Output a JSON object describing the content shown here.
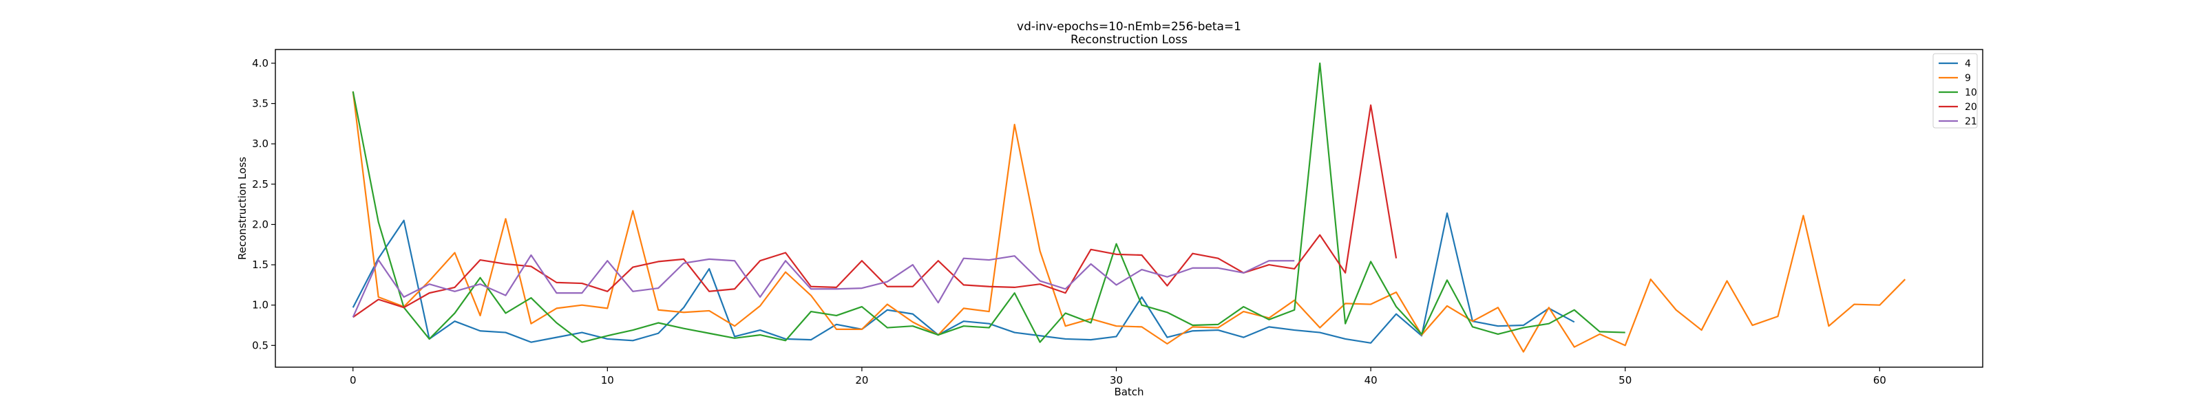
{
  "chart_data": {
    "type": "line",
    "title": "vd-inv-epochs=10-nEmb=256-beta=1",
    "subtitle": "Reconstruction Loss",
    "xlabel": "Batch",
    "ylabel": "Reconstruction Loss",
    "xlim": [
      -3.05,
      64.05
    ],
    "ylim": [
      0.23,
      4.17
    ],
    "xticks": [
      0,
      10,
      20,
      30,
      40,
      50,
      60
    ],
    "yticks": [
      0.5,
      1.0,
      1.5,
      2.0,
      2.5,
      3.0,
      3.5,
      4.0
    ],
    "grid": false,
    "legend_position": "top-right",
    "series": [
      {
        "name": "4",
        "color": "#1f77b4",
        "values": [
          0.97,
          1.58,
          2.05,
          0.58,
          0.8,
          0.68,
          0.66,
          0.54,
          0.6,
          0.66,
          0.58,
          0.56,
          0.65,
          0.97,
          1.45,
          0.61,
          0.69,
          0.58,
          0.57,
          0.76,
          0.7,
          0.94,
          0.89,
          0.63,
          0.8,
          0.77,
          0.66,
          0.62,
          0.58,
          0.57,
          0.61,
          1.1,
          0.6,
          0.68,
          0.69,
          0.6,
          0.73,
          0.69,
          0.66,
          0.58,
          0.53,
          0.89,
          0.62,
          2.14,
          0.8,
          0.74,
          0.75,
          0.96,
          0.79
        ]
      },
      {
        "name": "9",
        "color": "#ff7f0e",
        "values": [
          3.65,
          1.1,
          0.98,
          1.3,
          1.65,
          0.87,
          2.07,
          0.77,
          0.96,
          1.0,
          0.96,
          2.17,
          0.94,
          0.91,
          0.93,
          0.74,
          0.99,
          1.41,
          1.12,
          0.7,
          0.7,
          1.01,
          0.79,
          0.63,
          0.96,
          0.92,
          3.24,
          1.67,
          0.74,
          0.83,
          0.74,
          0.73,
          0.52,
          0.73,
          0.72,
          0.92,
          0.84,
          1.06,
          0.72,
          1.02,
          1.01,
          1.16,
          0.63,
          0.99,
          0.8,
          0.97,
          0.42,
          0.97,
          0.48,
          0.64,
          0.5,
          1.32,
          0.94,
          0.69,
          1.3,
          0.75,
          0.86,
          2.11,
          0.74,
          1.01,
          1.0,
          1.32
        ]
      },
      {
        "name": "10",
        "color": "#2ca02c",
        "values": [
          3.65,
          2.03,
          0.97,
          0.58,
          0.9,
          1.34,
          0.9,
          1.09,
          0.78,
          0.54,
          0.62,
          0.69,
          0.78,
          0.71,
          0.65,
          0.59,
          0.63,
          0.56,
          0.92,
          0.87,
          0.98,
          0.72,
          0.74,
          0.63,
          0.74,
          0.72,
          1.15,
          0.54,
          0.9,
          0.78,
          1.76,
          1.0,
          0.91,
          0.75,
          0.76,
          0.98,
          0.82,
          0.94,
          4.0,
          0.77,
          1.54,
          0.98,
          0.64,
          1.31,
          0.73,
          0.64,
          0.72,
          0.77,
          0.94,
          0.67,
          0.66
        ]
      },
      {
        "name": "20",
        "color": "#d62728",
        "values": [
          0.85,
          1.07,
          0.97,
          1.15,
          1.22,
          1.56,
          1.51,
          1.48,
          1.28,
          1.27,
          1.17,
          1.47,
          1.54,
          1.57,
          1.17,
          1.2,
          1.55,
          1.65,
          1.23,
          1.22,
          1.55,
          1.23,
          1.23,
          1.55,
          1.25,
          1.23,
          1.22,
          1.26,
          1.15,
          1.69,
          1.63,
          1.62,
          1.24,
          1.64,
          1.58,
          1.4,
          1.5,
          1.45,
          1.87,
          1.4,
          3.48,
          1.58
        ]
      },
      {
        "name": "21",
        "color": "#9467bd",
        "values": [
          0.85,
          1.56,
          1.1,
          1.26,
          1.17,
          1.26,
          1.12,
          1.62,
          1.15,
          1.15,
          1.55,
          1.17,
          1.21,
          1.52,
          1.57,
          1.55,
          1.1,
          1.55,
          1.2,
          1.2,
          1.21,
          1.29,
          1.5,
          1.03,
          1.58,
          1.56,
          1.61,
          1.3,
          1.2,
          1.51,
          1.25,
          1.44,
          1.35,
          1.46,
          1.46,
          1.4,
          1.55,
          1.55
        ]
      }
    ]
  }
}
